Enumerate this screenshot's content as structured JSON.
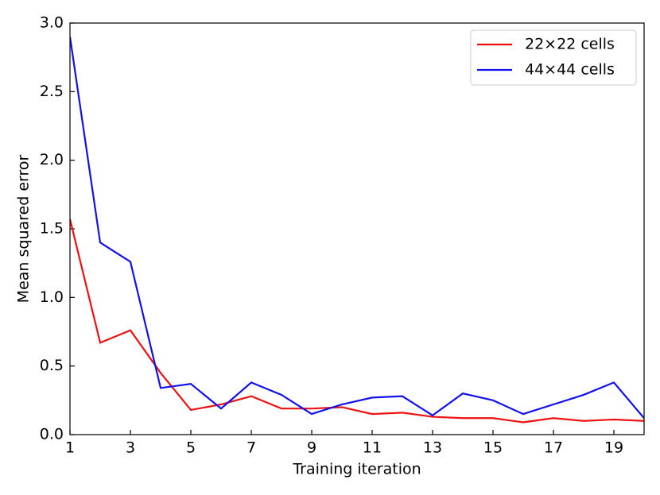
{
  "chart_data": {
    "type": "line",
    "xlabel": "Training iteration",
    "ylabel": "Mean squared error",
    "x": [
      1,
      2,
      3,
      4,
      5,
      6,
      7,
      8,
      9,
      10,
      11,
      12,
      13,
      14,
      15,
      16,
      17,
      18,
      19,
      20
    ],
    "series": [
      {
        "name": "22×22 cells",
        "color": "#ee1111",
        "values": [
          1.57,
          0.67,
          0.76,
          0.45,
          0.18,
          0.22,
          0.28,
          0.19,
          0.19,
          0.2,
          0.15,
          0.16,
          0.13,
          0.12,
          0.12,
          0.09,
          0.12,
          0.1,
          0.11,
          0.1
        ]
      },
      {
        "name": "44×44 cells",
        "color": "#1111ee",
        "values": [
          2.9,
          1.4,
          1.26,
          0.34,
          0.37,
          0.19,
          0.38,
          0.29,
          0.15,
          0.22,
          0.27,
          0.28,
          0.14,
          0.3,
          0.25,
          0.15,
          0.22,
          0.29,
          0.38,
          0.12
        ]
      }
    ],
    "xlim": [
      1,
      20
    ],
    "xticks": [
      1,
      3,
      5,
      7,
      9,
      11,
      13,
      15,
      17,
      19
    ],
    "ylim": [
      0,
      3
    ],
    "yticks": [
      {
        "value": 0,
        "label": "0.0"
      },
      0.5,
      {
        "value": 1,
        "label": "1.0"
      },
      1.5,
      {
        "value": 2,
        "label": "2.0"
      },
      2.5,
      {
        "value": 3,
        "label": "3.0"
      }
    ],
    "legend": "upper right"
  }
}
